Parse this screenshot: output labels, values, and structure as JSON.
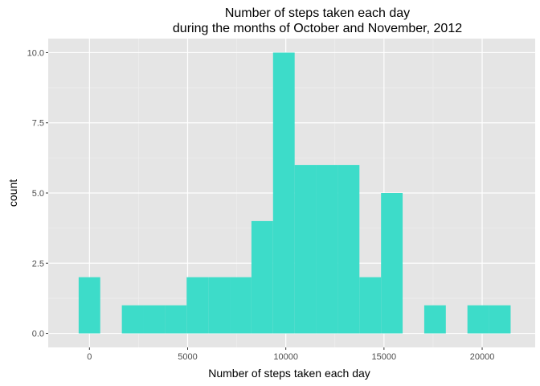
{
  "chart_data": {
    "type": "bar",
    "subtype": "histogram",
    "title_lines": [
      "Number of steps taken each day",
      "during the months of October and November, 2012"
    ],
    "xlabel": "Number of steps taken each day",
    "ylabel": "count",
    "xlim": [
      -2100,
      22700
    ],
    "ylim": [
      -0.5,
      10.5
    ],
    "x_ticks": [
      {
        "value": 0,
        "label": "0"
      },
      {
        "value": 5000,
        "label": "5000"
      },
      {
        "value": 10000,
        "label": "10000"
      },
      {
        "value": 15000,
        "label": "15000"
      },
      {
        "value": 20000,
        "label": "20000"
      }
    ],
    "y_ticks": [
      {
        "value": 0,
        "label": "0.0"
      },
      {
        "value": 2.5,
        "label": "2.5"
      },
      {
        "value": 5,
        "label": "5.0"
      },
      {
        "value": 7.5,
        "label": "7.5"
      },
      {
        "value": 10,
        "label": "10.0"
      }
    ],
    "bin_width": 1100,
    "bins": [
      {
        "x0": -550,
        "x1": 550,
        "count": 2
      },
      {
        "x0": 550,
        "x1": 1650,
        "count": 0
      },
      {
        "x0": 1650,
        "x1": 2750,
        "count": 1
      },
      {
        "x0": 2750,
        "x1": 3850,
        "count": 1
      },
      {
        "x0": 3850,
        "x1": 4950,
        "count": 1
      },
      {
        "x0": 4950,
        "x1": 6050,
        "count": 2
      },
      {
        "x0": 6050,
        "x1": 7150,
        "count": 2
      },
      {
        "x0": 7150,
        "x1": 8250,
        "count": 2
      },
      {
        "x0": 8250,
        "x1": 9350,
        "count": 4
      },
      {
        "x0": 9350,
        "x1": 10450,
        "count": 10
      },
      {
        "x0": 10450,
        "x1": 11550,
        "count": 6
      },
      {
        "x0": 11550,
        "x1": 12650,
        "count": 6
      },
      {
        "x0": 12650,
        "x1": 13750,
        "count": 6
      },
      {
        "x0": 13750,
        "x1": 14850,
        "count": 2
      },
      {
        "x0": 14850,
        "x1": 15950,
        "count": 5
      },
      {
        "x0": 15950,
        "x1": 17050,
        "count": 0
      },
      {
        "x0": 17050,
        "x1": 18150,
        "count": 1
      },
      {
        "x0": 18150,
        "x1": 19250,
        "count": 0
      },
      {
        "x0": 19250,
        "x1": 20350,
        "count": 1
      },
      {
        "x0": 20350,
        "x1": 21450,
        "count": 1
      }
    ],
    "grid": true,
    "legend": "none",
    "colors": {
      "fill": "#3ddcc9",
      "panel": "#e5e5e5",
      "grid_major": "#ffffff",
      "grid_minor": "#f0f0f0",
      "tick": "#333333",
      "tick_text": "#4d4d4d"
    }
  }
}
